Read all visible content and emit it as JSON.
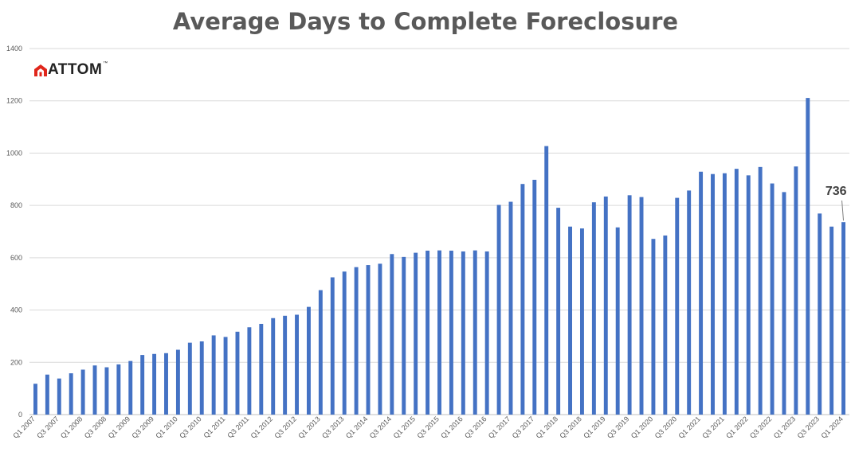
{
  "chart_data": {
    "type": "bar",
    "title": "Average Days to Complete Foreclosure",
    "xlabel": "",
    "ylabel": "",
    "ylim": [
      0,
      1400
    ],
    "yticks": [
      0,
      200,
      400,
      600,
      800,
      1000,
      1200,
      1400
    ],
    "grid": true,
    "bar_color": "#4472C4",
    "categories": [
      "Q1 2007",
      "Q2 2007",
      "Q3 2007",
      "Q4 2007",
      "Q1 2008",
      "Q2 2008",
      "Q3 2008",
      "Q4 2008",
      "Q1 2009",
      "Q2 2009",
      "Q3 2009",
      "Q4 2009",
      "Q1 2010",
      "Q2 2010",
      "Q3 2010",
      "Q4 2010",
      "Q1 2011",
      "Q2 2011",
      "Q3 2011",
      "Q4 2011",
      "Q1 2012",
      "Q2 2012",
      "Q3 2012",
      "Q4 2012",
      "Q1 2013",
      "Q2 2013",
      "Q3 2013",
      "Q4 2013",
      "Q1 2014",
      "Q2 2014",
      "Q3 2014",
      "Q4 2014",
      "Q1 2015",
      "Q2 2015",
      "Q3 2015",
      "Q4 2015",
      "Q1 2016",
      "Q2 2016",
      "Q3 2016",
      "Q4 2016",
      "Q1 2017",
      "Q2 2017",
      "Q3 2017",
      "Q4 2017",
      "Q1 2018",
      "Q2 2018",
      "Q3 2018",
      "Q4 2018",
      "Q1 2019",
      "Q2 2019",
      "Q3 2019",
      "Q4 2019",
      "Q1 2020",
      "Q2 2020",
      "Q3 2020",
      "Q4 2020",
      "Q1 2021",
      "Q2 2021",
      "Q3 2021",
      "Q4 2021",
      "Q1 2022",
      "Q2 2022",
      "Q3 2022",
      "Q4 2022",
      "Q1 2023",
      "Q2 2023",
      "Q3 2023",
      "Q4 2023",
      "Q1 2024"
    ],
    "values": [
      118,
      153,
      138,
      158,
      172,
      188,
      181,
      192,
      205,
      228,
      232,
      235,
      248,
      275,
      280,
      303,
      297,
      317,
      334,
      347,
      369,
      378,
      382,
      412,
      476,
      525,
      547,
      564,
      572,
      577,
      614,
      603,
      619,
      627,
      628,
      627,
      624,
      628,
      624,
      802,
      814,
      882,
      898,
      1027,
      791,
      719,
      712,
      812,
      834,
      716,
      839,
      832,
      672,
      685,
      829,
      857,
      929,
      920,
      923,
      940,
      915,
      947,
      884,
      851,
      949,
      1211,
      769,
      719,
      736
    ],
    "tick_label_categories": [
      "Q1 2007",
      "Q3 2007",
      "Q1 2008",
      "Q3 2008",
      "Q1 2009",
      "Q3 2009",
      "Q1 2010",
      "Q3 2010",
      "Q1 2011",
      "Q3 2011",
      "Q1 2012",
      "Q3 2012",
      "Q1 2013",
      "Q3 2013",
      "Q1 2014",
      "Q3 2014",
      "Q1 2015",
      "Q3 2015",
      "Q1 2016",
      "Q3 2016",
      "Q1 2017",
      "Q3 2017",
      "Q1 2018",
      "Q3 2018",
      "Q1 2019",
      "Q3 2019",
      "Q1 2020",
      "Q3 2020",
      "Q1 2021",
      "Q3 2021",
      "Q1 2022",
      "Q3 2022",
      "Q1 2023",
      "Q3 2023",
      "Q1 2024"
    ],
    "annotation": {
      "category": "Q1 2024",
      "text": "736"
    }
  },
  "logo": {
    "text": "ATTOM",
    "tm": "™",
    "icon": "attom-house-icon",
    "icon_color": "#E0261B"
  }
}
